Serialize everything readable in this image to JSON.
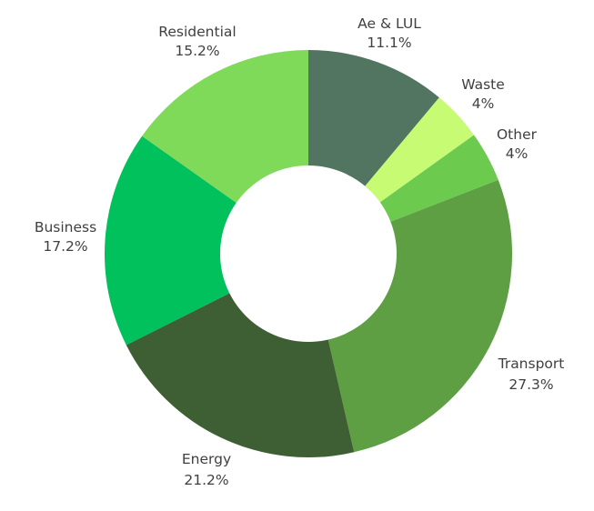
{
  "chart_data": {
    "type": "pie",
    "donut": true,
    "start_angle_deg": 0,
    "direction": "clockwise",
    "slices": [
      {
        "label": "Ae & LUL",
        "value": 11.1,
        "value_label": "11.1%",
        "color": "#517561"
      },
      {
        "label": "Waste",
        "value": 4,
        "value_label": "4%",
        "color": "#c6fb73"
      },
      {
        "label": "Other",
        "value": 4,
        "value_label": "4%",
        "color": "#6ccb4e"
      },
      {
        "label": "Transport",
        "value": 27.3,
        "value_label": "27.3%",
        "color": "#5e9f43"
      },
      {
        "label": "Energy",
        "value": 21.2,
        "value_label": "21.2%",
        "color": "#3e5e34"
      },
      {
        "label": "Business",
        "value": 17.2,
        "value_label": "17.2%",
        "color": "#00c15c"
      },
      {
        "label": "Residential",
        "value": 15.2,
        "value_label": "15.2%",
        "color": "#80da59"
      }
    ],
    "legend": "none"
  }
}
